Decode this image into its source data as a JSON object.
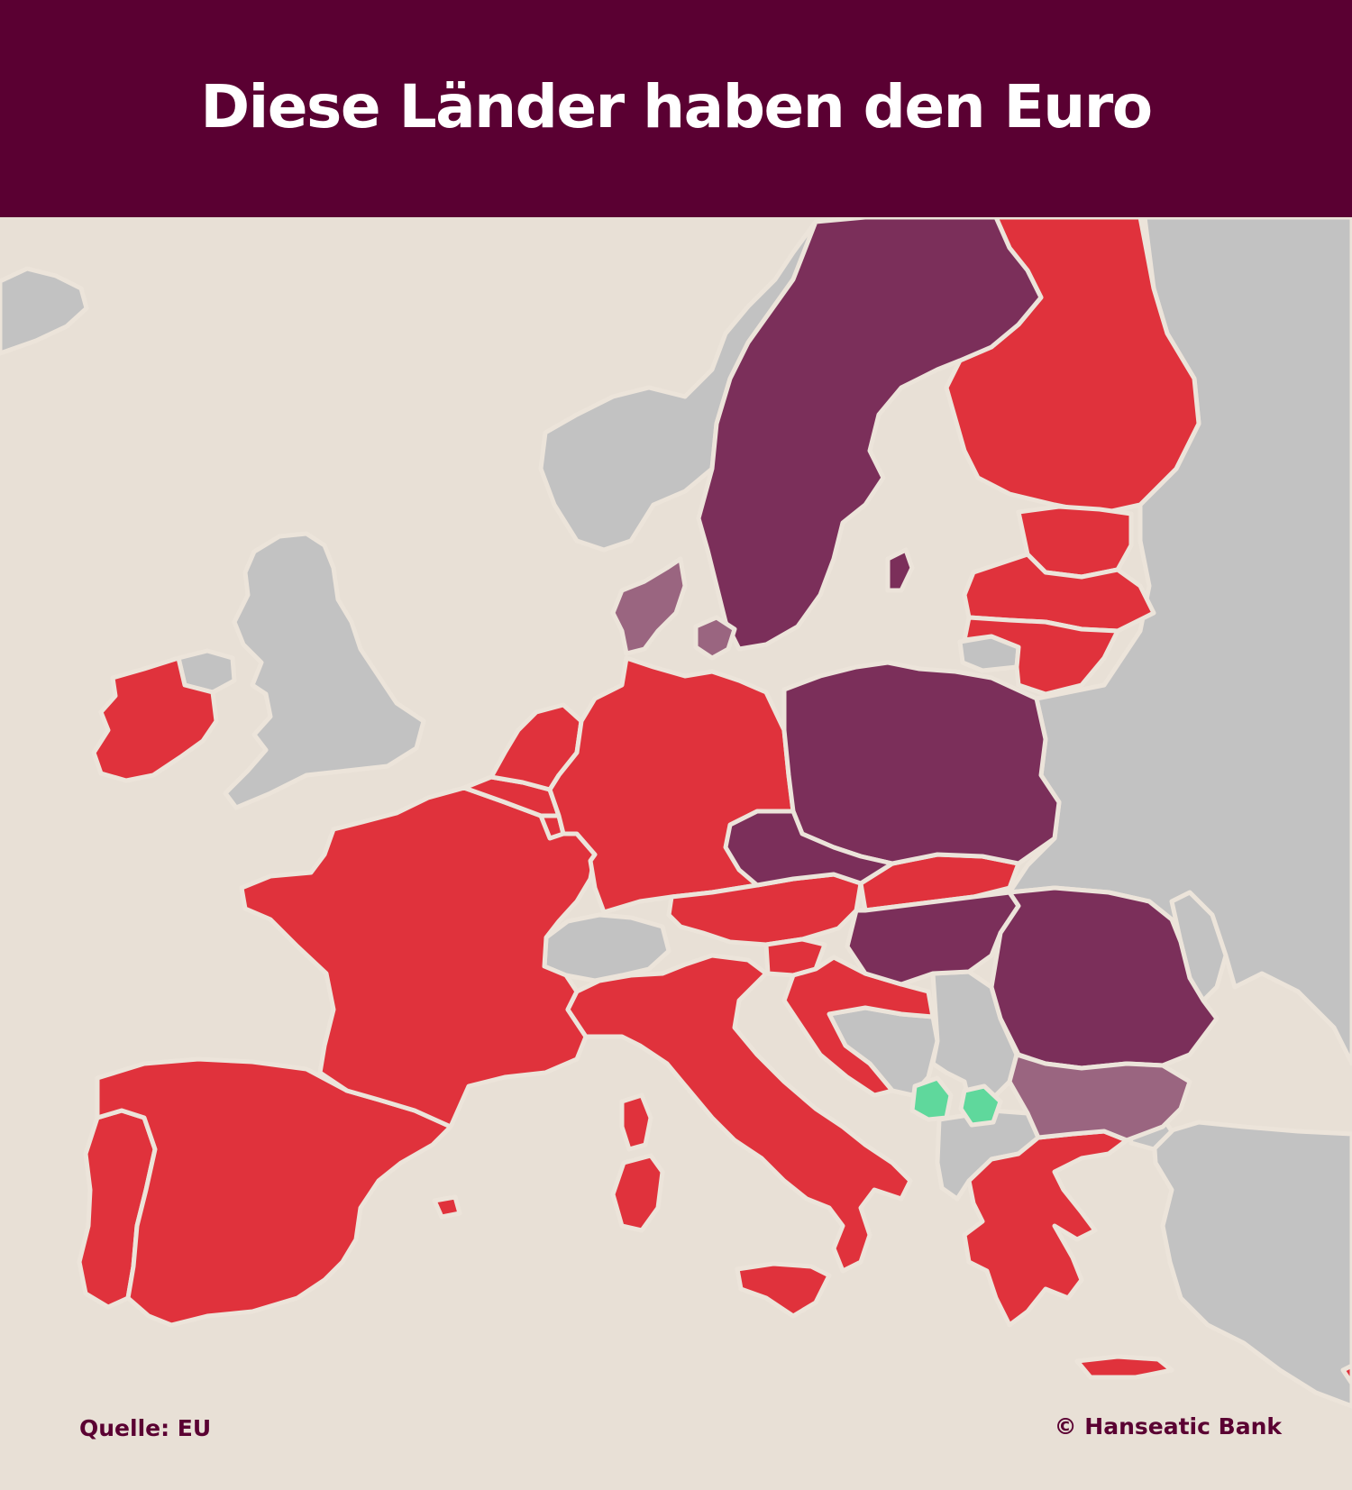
{
  "title": "Diese Länder haben den Euro",
  "footer": {
    "source": "Quelle: EU",
    "copyright": "© Hanseatic Bank"
  },
  "colors": {
    "header_bg": "#5a0032",
    "sea": "#e8e0d6",
    "euro": "#e0323c",
    "eu_non_euro": "#7b2f5a",
    "eu_non_euro_light": "#9a6580",
    "euro_unilateral": "#5fd89c",
    "other": "#c2c2c2",
    "border": "#ece4da"
  },
  "country_groups": {
    "euro": [
      "Ireland",
      "Portugal",
      "Spain",
      "France",
      "Belgium",
      "Netherlands",
      "Luxembourg",
      "Germany",
      "Austria",
      "Italy",
      "Slovenia",
      "Croatia",
      "Slovakia",
      "Finland",
      "Estonia",
      "Latvia",
      "Lithuania",
      "Greece",
      "Malta",
      "Cyprus"
    ],
    "eu_non_euro": [
      "Sweden",
      "Poland",
      "Czechia",
      "Hungary",
      "Romania"
    ],
    "eu_non_euro_light": [
      "Denmark",
      "Bulgaria"
    ],
    "euro_unilateral": [
      "Montenegro",
      "Kosovo"
    ],
    "other": [
      "Iceland",
      "Norway",
      "United Kingdom",
      "Northern Ireland",
      "Switzerland",
      "Bosnia and Herzegovina",
      "Serbia",
      "North Macedonia",
      "Albania",
      "Russia",
      "Belarus",
      "Ukraine",
      "Moldova",
      "Turkey"
    ]
  }
}
